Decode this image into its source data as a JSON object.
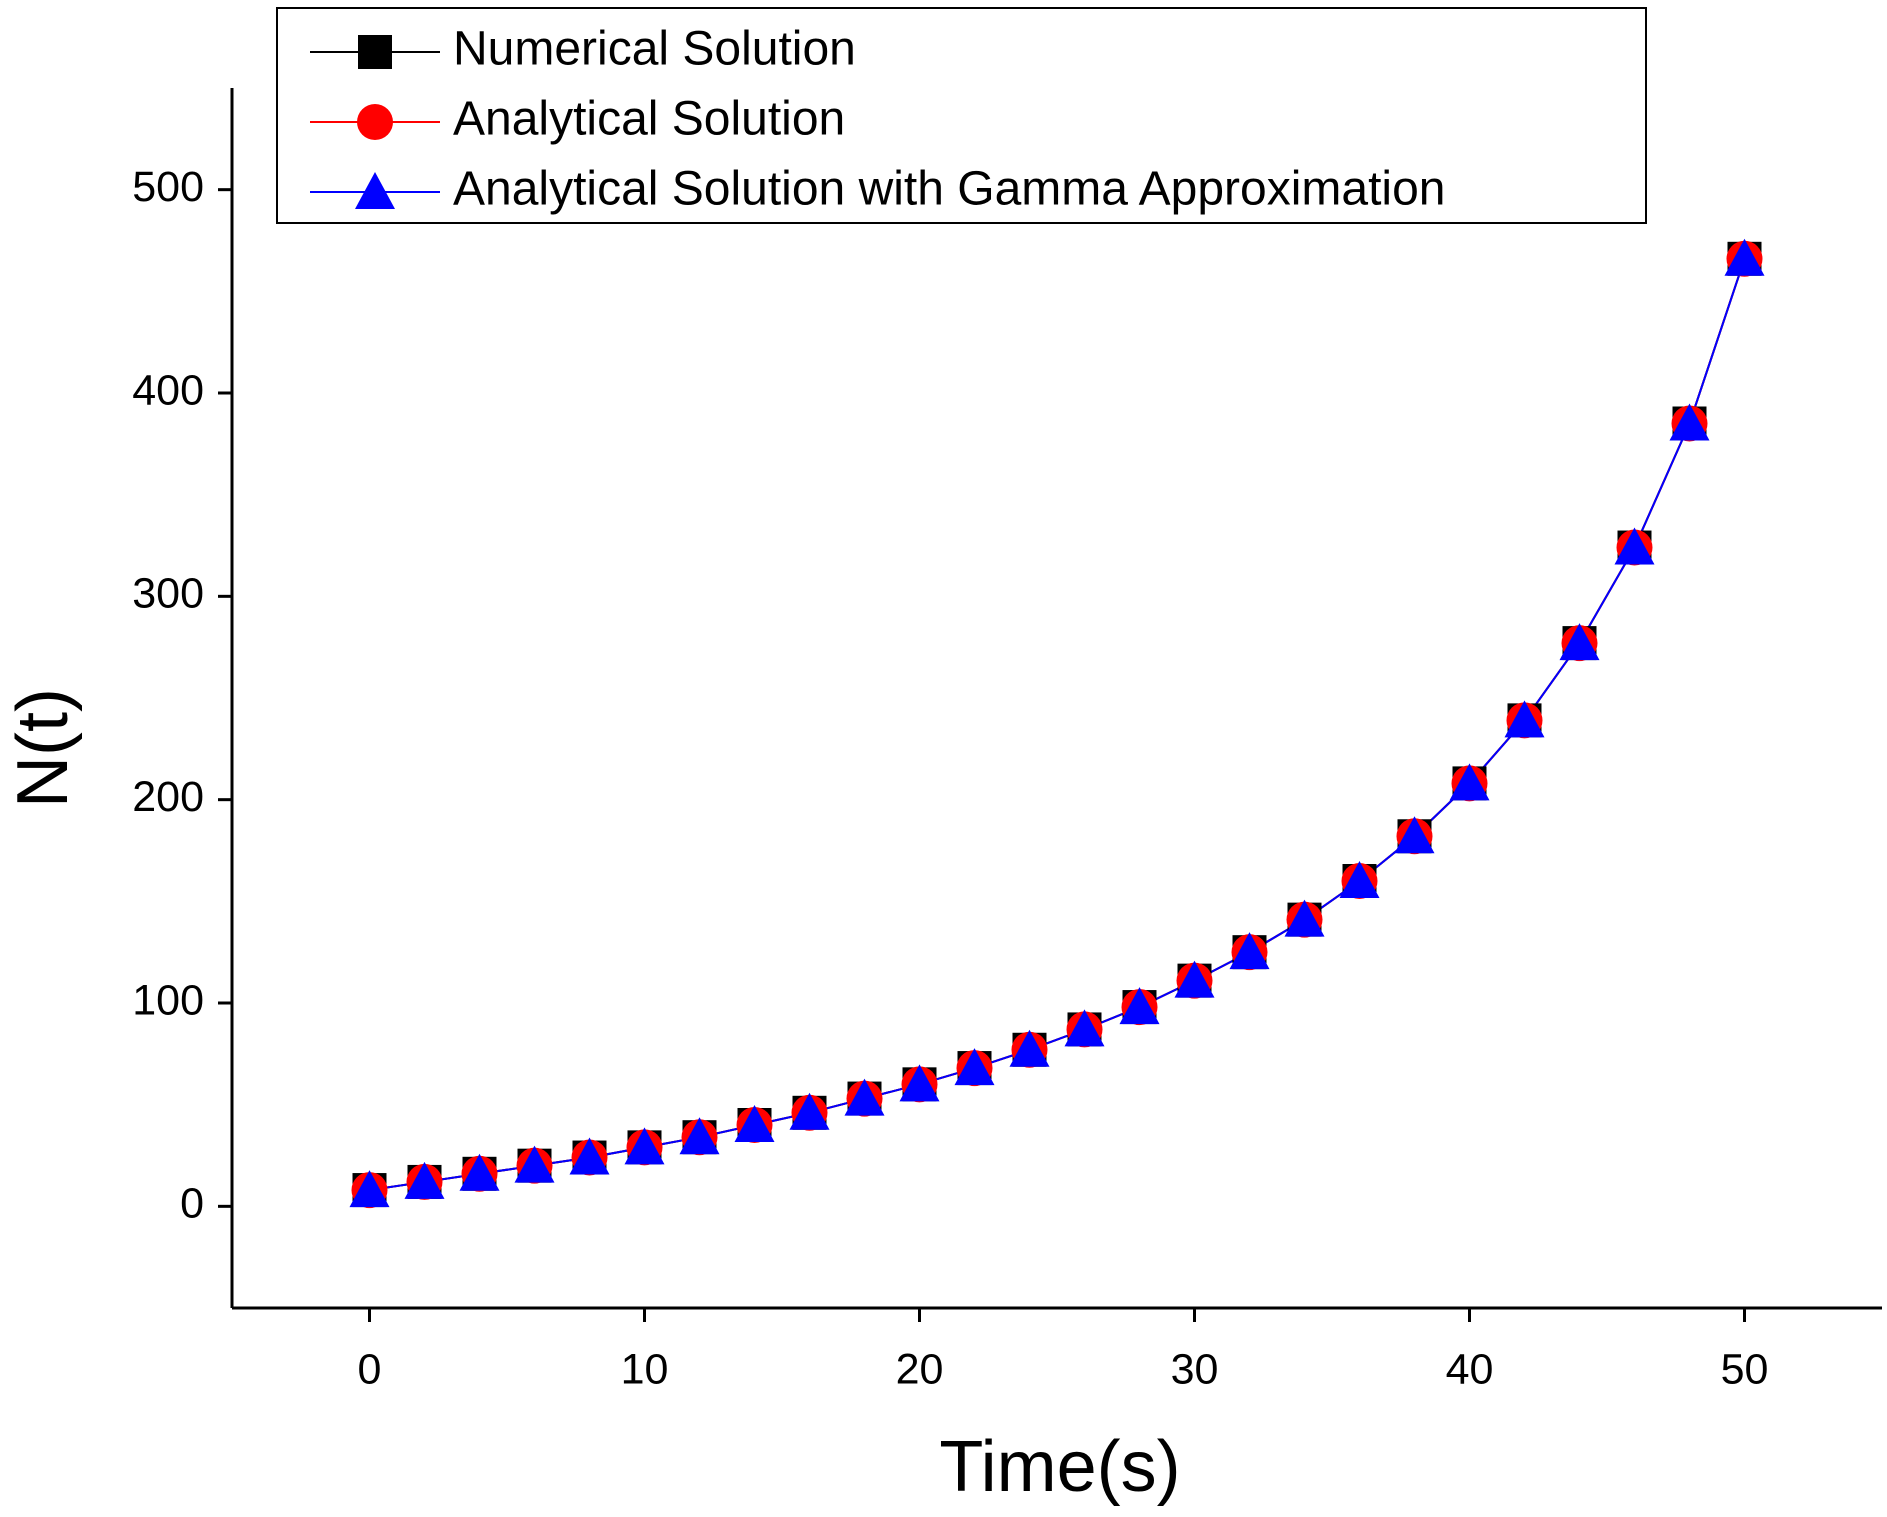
{
  "chart_data": {
    "type": "line",
    "x_label": "Time(s)",
    "y_label": "N(t)",
    "x": [
      0,
      2,
      4,
      6,
      8,
      10,
      12,
      14,
      16,
      18,
      20,
      22,
      24,
      26,
      28,
      30,
      32,
      34,
      36,
      38,
      40,
      42,
      44,
      46,
      48,
      50
    ],
    "series": [
      {
        "name": "Numerical Solution",
        "color": "#000000",
        "marker": "square",
        "values": [
          8,
          12,
          16,
          20,
          24,
          29,
          34,
          40,
          46,
          53,
          60,
          68,
          77,
          87,
          98,
          111,
          125,
          141,
          160,
          182,
          208,
          239,
          277,
          324,
          385,
          466
        ]
      },
      {
        "name": "Analytical Solution",
        "color": "#ff0000",
        "marker": "circle",
        "values": [
          8,
          12,
          16,
          20,
          24,
          29,
          34,
          40,
          46,
          53,
          60,
          68,
          77,
          87,
          98,
          111,
          125,
          141,
          160,
          182,
          208,
          239,
          277,
          324,
          385,
          466
        ]
      },
      {
        "name": "Analytical Solution with Gamma Approximation",
        "color": "#0000ff",
        "marker": "triangle",
        "values": [
          8,
          12,
          16,
          20,
          24,
          29,
          34,
          40,
          46,
          53,
          60,
          68,
          77,
          87,
          98,
          111,
          125,
          141,
          160,
          182,
          208,
          239,
          277,
          324,
          385,
          466
        ]
      }
    ],
    "xlim": [
      -5,
      55
    ],
    "ylim": [
      -50,
      550
    ],
    "xticks": [
      0,
      10,
      20,
      30,
      40,
      50
    ],
    "yticks": [
      0,
      100,
      200,
      300,
      400,
      500
    ],
    "grid": false,
    "legend": "top"
  }
}
